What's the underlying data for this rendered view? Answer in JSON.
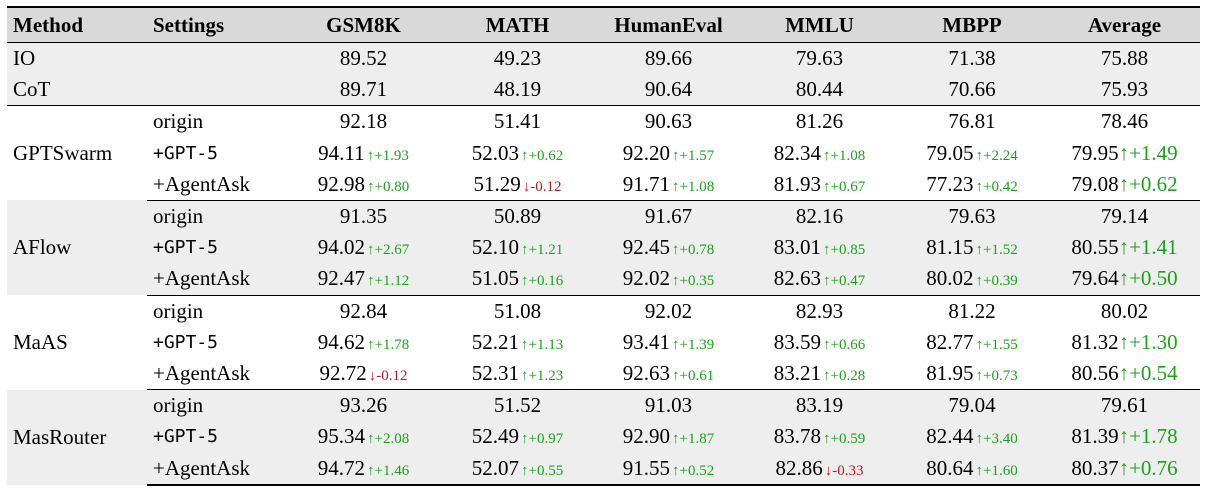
{
  "headers": [
    "Method",
    "Settings",
    "GSM8K",
    "MATH",
    "HumanEval",
    "MMLU",
    "MBPP",
    "Average"
  ],
  "baselines": [
    {
      "method": "IO",
      "values": [
        "89.52",
        "49.23",
        "89.66",
        "79.63",
        "71.38",
        "75.88"
      ]
    },
    {
      "method": "CoT",
      "values": [
        "89.71",
        "48.19",
        "90.64",
        "80.44",
        "70.66",
        "75.93"
      ]
    }
  ],
  "groups": [
    {
      "method": "GPTSwarm",
      "rows": [
        {
          "setting": "origin",
          "cells": [
            {
              "v": "92.18"
            },
            {
              "v": "51.41"
            },
            {
              "v": "90.63"
            },
            {
              "v": "81.26"
            },
            {
              "v": "76.81"
            },
            {
              "v": "78.46"
            }
          ]
        },
        {
          "setting": "+GPT-5",
          "cells": [
            {
              "v": "94.11",
              "d": "↑+1.93",
              "dir": "up"
            },
            {
              "v": "52.03",
              "d": "↑+0.62",
              "dir": "up"
            },
            {
              "v": "92.20",
              "d": "↑+1.57",
              "dir": "up"
            },
            {
              "v": "82.34",
              "d": "↑+1.08",
              "dir": "up"
            },
            {
              "v": "79.05",
              "d": "↑+2.24",
              "dir": "up"
            },
            {
              "v": "79.95",
              "d": "↑+1.49",
              "dir": "up"
            }
          ]
        },
        {
          "setting": "+AgentAsk",
          "cells": [
            {
              "v": "92.98",
              "d": "↑+0.80",
              "dir": "up"
            },
            {
              "v": "51.29",
              "d": "↓-0.12",
              "dir": "down"
            },
            {
              "v": "91.71",
              "d": "↑+1.08",
              "dir": "up"
            },
            {
              "v": "81.93",
              "d": "↑+0.67",
              "dir": "up"
            },
            {
              "v": "77.23",
              "d": "↑+0.42",
              "dir": "up"
            },
            {
              "v": "79.08",
              "d": "↑+0.62",
              "dir": "up"
            }
          ]
        }
      ]
    },
    {
      "method": "AFlow",
      "rows": [
        {
          "setting": "origin",
          "cells": [
            {
              "v": "91.35"
            },
            {
              "v": "50.89"
            },
            {
              "v": "91.67"
            },
            {
              "v": "82.16"
            },
            {
              "v": "79.63"
            },
            {
              "v": "79.14"
            }
          ]
        },
        {
          "setting": "+GPT-5",
          "cells": [
            {
              "v": "94.02",
              "d": "↑+2.67",
              "dir": "up"
            },
            {
              "v": "52.10",
              "d": "↑+1.21",
              "dir": "up"
            },
            {
              "v": "92.45",
              "d": "↑+0.78",
              "dir": "up"
            },
            {
              "v": "83.01",
              "d": "↑+0.85",
              "dir": "up"
            },
            {
              "v": "81.15",
              "d": "↑+1.52",
              "dir": "up"
            },
            {
              "v": "80.55",
              "d": "↑+1.41",
              "dir": "up"
            }
          ]
        },
        {
          "setting": "+AgentAsk",
          "cells": [
            {
              "v": "92.47",
              "d": "↑+1.12",
              "dir": "up"
            },
            {
              "v": "51.05",
              "d": "↑+0.16",
              "dir": "up"
            },
            {
              "v": "92.02",
              "d": "↑+0.35",
              "dir": "up"
            },
            {
              "v": "82.63",
              "d": "↑+0.47",
              "dir": "up"
            },
            {
              "v": "80.02",
              "d": "↑+0.39",
              "dir": "up"
            },
            {
              "v": "79.64",
              "d": "↑+0.50",
              "dir": "up"
            }
          ]
        }
      ]
    },
    {
      "method": "MaAS",
      "rows": [
        {
          "setting": "origin",
          "cells": [
            {
              "v": "92.84"
            },
            {
              "v": "51.08"
            },
            {
              "v": "92.02"
            },
            {
              "v": "82.93"
            },
            {
              "v": "81.22"
            },
            {
              "v": "80.02"
            }
          ]
        },
        {
          "setting": "+GPT-5",
          "cells": [
            {
              "v": "94.62",
              "d": "↑+1.78",
              "dir": "up"
            },
            {
              "v": "52.21",
              "d": "↑+1.13",
              "dir": "up"
            },
            {
              "v": "93.41",
              "d": "↑+1.39",
              "dir": "up"
            },
            {
              "v": "83.59",
              "d": "↑+0.66",
              "dir": "up"
            },
            {
              "v": "82.77",
              "d": "↑+1.55",
              "dir": "up"
            },
            {
              "v": "81.32",
              "d": "↑+1.30",
              "dir": "up"
            }
          ]
        },
        {
          "setting": "+AgentAsk",
          "cells": [
            {
              "v": "92.72",
              "d": "↓-0.12",
              "dir": "down"
            },
            {
              "v": "52.31",
              "d": "↑+1.23",
              "dir": "up"
            },
            {
              "v": "92.63",
              "d": "↑+0.61",
              "dir": "up"
            },
            {
              "v": "83.21",
              "d": "↑+0.28",
              "dir": "up"
            },
            {
              "v": "81.95",
              "d": "↑+0.73",
              "dir": "up"
            },
            {
              "v": "80.56",
              "d": "↑+0.54",
              "dir": "up"
            }
          ]
        }
      ]
    },
    {
      "method": "MasRouter",
      "rows": [
        {
          "setting": "origin",
          "cells": [
            {
              "v": "93.26"
            },
            {
              "v": "51.52"
            },
            {
              "v": "91.03"
            },
            {
              "v": "83.19"
            },
            {
              "v": "79.04"
            },
            {
              "v": "79.61"
            }
          ]
        },
        {
          "setting": "+GPT-5",
          "cells": [
            {
              "v": "95.34",
              "d": "↑+2.08",
              "dir": "up"
            },
            {
              "v": "52.49",
              "d": "↑+0.97",
              "dir": "up"
            },
            {
              "v": "92.90",
              "d": "↑+1.87",
              "dir": "up"
            },
            {
              "v": "83.78",
              "d": "↑+0.59",
              "dir": "up"
            },
            {
              "v": "82.44",
              "d": "↑+3.40",
              "dir": "up"
            },
            {
              "v": "81.39",
              "d": "↑+1.78",
              "dir": "up"
            }
          ]
        },
        {
          "setting": "+AgentAsk",
          "cells": [
            {
              "v": "94.72",
              "d": "↑+1.46",
              "dir": "up"
            },
            {
              "v": "52.07",
              "d": "↑+0.55",
              "dir": "up"
            },
            {
              "v": "91.55",
              "d": "↑+0.52",
              "dir": "up"
            },
            {
              "v": "82.86",
              "d": "↓-0.33",
              "dir": "down"
            },
            {
              "v": "80.64",
              "d": "↑+1.60",
              "dir": "up"
            },
            {
              "v": "80.37",
              "d": "↑+0.76",
              "dir": "up"
            }
          ]
        }
      ]
    }
  ],
  "colors": {
    "up": "#1aa31a",
    "down": "#c0181e",
    "shade": "#eeeeee",
    "header_shade": "#d9d9d9"
  }
}
